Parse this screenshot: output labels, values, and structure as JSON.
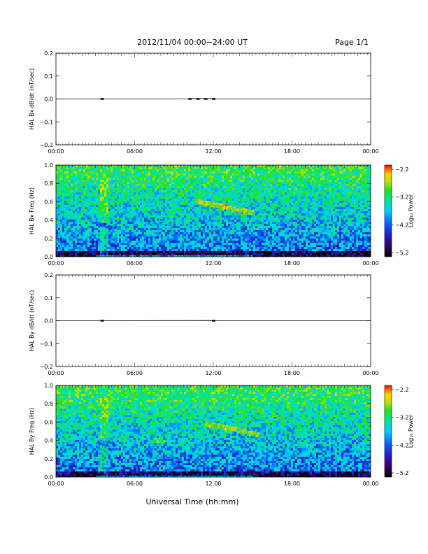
{
  "header": {
    "title": "2012/11/04   00:00−24:00 UT",
    "page": "Page 1/1"
  },
  "footer": {
    "xlabel": "Universal Time (hh:mm)"
  },
  "colors": {
    "trace": "#000000",
    "colormap": [
      "#000000",
      "#3a006e",
      "#2020d0",
      "#0070ff",
      "#00d0ff",
      "#00e890",
      "#20e020",
      "#c0e000",
      "#ffd000",
      "#ff6000",
      "#ff0000"
    ]
  },
  "chart_data": [
    {
      "type": "line",
      "id": "bx-dbdt",
      "ylabel": "HAL Bx dB/dt (nT/sec)",
      "ylim": [
        -0.2,
        0.2
      ],
      "yticks": [
        0.2,
        0.1,
        0.0,
        -0.1,
        -0.2
      ],
      "yticklabels": [
        "0.2",
        "0.1",
        "0.0",
        "−0.1",
        "−0.2"
      ],
      "xlim": [
        "00:00",
        "24:00"
      ],
      "xticks": [
        "00:00",
        "06:00",
        "12:00",
        "18:00",
        "00:00"
      ],
      "x_hours": [
        0,
        6,
        12,
        18,
        24
      ],
      "series": [
        {
          "x": [
            0,
            3.2,
            3.5,
            3.7,
            10.2,
            10.8,
            11.4,
            12.0,
            12.3,
            24
          ],
          "y": [
            0.0,
            0.0,
            0.002,
            0.0,
            0.001,
            0.002,
            0.001,
            0.002,
            0.0,
            0.0
          ]
        }
      ]
    },
    {
      "type": "heatmap",
      "id": "bx-freq",
      "ylabel": "HAL Bx Freq (Hz)",
      "ylim": [
        0.0,
        1.0
      ],
      "yticks": [
        1.0,
        0.8,
        0.6,
        0.4,
        0.2,
        0.0
      ],
      "yticklabels": [
        "1.0",
        "0.8",
        "0.6",
        "0.4",
        "0.2",
        "0.0"
      ],
      "xlim": [
        "00:00",
        "24:00"
      ],
      "xticks": [
        "00:00",
        "06:00",
        "12:00",
        "18:00",
        "00:00"
      ],
      "x_hours": [
        0,
        6,
        12,
        18,
        24
      ],
      "colorbar": {
        "label": "Log₁₀ Power",
        "range": [
          -5.2,
          -2.2
        ],
        "ticks": [
          "−2.2",
          "−3.2",
          "−4.2",
          "−5.2"
        ]
      },
      "features": [
        {
          "x": [
            10.8,
            12.2,
            13.6,
            15.0
          ],
          "y": [
            0.6,
            0.56,
            0.52,
            0.48
          ],
          "level": -2.4
        },
        {
          "x": [
            7.2,
            8.2
          ],
          "y": [
            0.38,
            0.38
          ],
          "level": -3.4
        },
        {
          "x": [
            3.3,
            4.5
          ],
          "y": [
            0.35,
            0.3
          ],
          "level": -3.6
        }
      ]
    },
    {
      "type": "line",
      "id": "by-dbdt",
      "ylabel": "HAL By dB/dt (nT/sec)",
      "ylim": [
        -0.2,
        0.2
      ],
      "yticks": [
        0.2,
        0.1,
        0.0,
        -0.1,
        -0.2
      ],
      "yticklabels": [
        "0.2",
        "0.1",
        "0.0",
        "−0.1",
        "−0.2"
      ],
      "xlim": [
        "00:00",
        "24:00"
      ],
      "xticks": [
        "00:00",
        "06:00",
        "12:00",
        "18:00",
        "00:00"
      ],
      "x_hours": [
        0,
        6,
        12,
        18,
        24
      ],
      "series": [
        {
          "x": [
            0,
            3.2,
            3.5,
            3.8,
            12.0,
            12.4,
            24
          ],
          "y": [
            0.0,
            0.0,
            0.002,
            0.0,
            0.001,
            0.0,
            0.0
          ]
        }
      ]
    },
    {
      "type": "heatmap",
      "id": "by-freq",
      "ylabel": "HAL By Freq (Hz)",
      "ylim": [
        0.0,
        1.0
      ],
      "yticks": [
        1.0,
        0.8,
        0.6,
        0.4,
        0.2,
        0.0
      ],
      "yticklabels": [
        "1.0",
        "0.8",
        "0.6",
        "0.4",
        "0.2",
        "0.0"
      ],
      "xlim": [
        "00:00",
        "24:00"
      ],
      "xticks": [
        "00:00",
        "06:00",
        "12:00",
        "18:00",
        "00:00"
      ],
      "x_hours": [
        0,
        6,
        12,
        18,
        24
      ],
      "colorbar": {
        "label": "Log₁₀ Power",
        "range": [
          -5.2,
          -2.2
        ],
        "ticks": [
          "−2.2",
          "−3.2",
          "−4.2",
          "−5.2"
        ]
      },
      "features": [
        {
          "x": [
            11.4,
            12.8,
            14.2,
            15.4
          ],
          "y": [
            0.58,
            0.54,
            0.5,
            0.46
          ],
          "level": -2.6
        },
        {
          "x": [
            7.5,
            8.2
          ],
          "y": [
            0.4,
            0.38
          ],
          "level": -2.8
        },
        {
          "x": [
            3.3,
            4.5
          ],
          "y": [
            0.38,
            0.35
          ],
          "level": -3.5
        }
      ]
    }
  ]
}
